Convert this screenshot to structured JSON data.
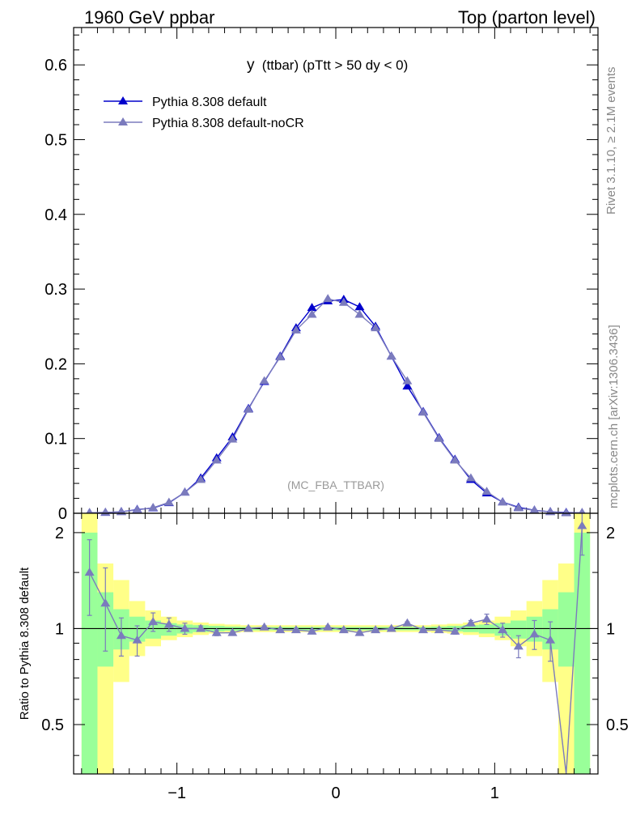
{
  "header": {
    "left": "1960 GeV ppbar",
    "right": "Top (parton level)"
  },
  "side_labels": {
    "rivet": "Rivet 3.1.10, ≥ 2.1M events",
    "mcplots": "mcplots.cern.ch [arXiv:1306.3436]"
  },
  "chart_data": [
    {
      "type": "line",
      "panel": "main",
      "title": "y (ttbar) (pTtt > 50 dy < 0)",
      "title_main": "y",
      "title_rest": "(ttbar) (pTtt > 50 dy < 0)",
      "watermark": "(MC_FBA_TTBAR)",
      "xlim": [
        -1.65,
        1.65
      ],
      "ylim": [
        0,
        0.65
      ],
      "x_ticks": [
        -1,
        0,
        1
      ],
      "y_ticks": [
        0,
        0.1,
        0.2,
        0.3,
        0.4,
        0.5,
        0.6
      ],
      "y_tick_labels": [
        "0",
        "0.1",
        "0.2",
        "0.3",
        "0.4",
        "0.5",
        "0.6"
      ],
      "legend_position": "top-left",
      "x": [
        -1.55,
        -1.45,
        -1.35,
        -1.25,
        -1.15,
        -1.05,
        -0.95,
        -0.85,
        -0.75,
        -0.65,
        -0.55,
        -0.45,
        -0.35,
        -0.25,
        -0.15,
        -0.05,
        0.05,
        0.15,
        0.25,
        0.35,
        0.45,
        0.55,
        0.65,
        0.75,
        0.85,
        0.95,
        1.05,
        1.15,
        1.25,
        1.35,
        1.45,
        1.55
      ],
      "series": [
        {
          "name": "Pythia 8.308 default",
          "color": "#0000cc",
          "values": [
            0.0005,
            0.001,
            0.002,
            0.005,
            0.007,
            0.014,
            0.028,
            0.047,
            0.074,
            0.102,
            0.14,
            0.176,
            0.21,
            0.248,
            0.275,
            0.284,
            0.286,
            0.276,
            0.25,
            0.21,
            0.17,
            0.136,
            0.101,
            0.072,
            0.045,
            0.027,
            0.015,
            0.008,
            0.004,
            0.002,
            0.001,
            0.0004
          ]
        },
        {
          "name": "Pythia 8.308 default-noCR",
          "color": "#7b7bbd",
          "values": [
            0.0008,
            0.0012,
            0.0019,
            0.0046,
            0.0074,
            0.0145,
            0.028,
            0.045,
            0.071,
            0.099,
            0.139,
            0.177,
            0.209,
            0.245,
            0.266,
            0.287,
            0.282,
            0.266,
            0.248,
            0.21,
            0.177,
            0.135,
            0.1,
            0.071,
            0.047,
            0.029,
            0.0148,
            0.0071,
            0.0039,
            0.0019,
            0.0004,
            0.0009
          ]
        }
      ]
    },
    {
      "type": "line",
      "panel": "ratio",
      "ylabel": "Ratio to Pythia 8.308 default",
      "ylim": [
        0.35,
        2.3
      ],
      "y_ticks": [
        0.5,
        1,
        2
      ],
      "y_tick_labels": [
        "0.5",
        "1",
        "2"
      ],
      "x_ticks": [
        -1,
        0,
        1
      ],
      "x_tick_labels": [
        "−1",
        "0",
        "1"
      ],
      "log_scale_y": true,
      "band_colors": {
        "inner": "#99ff99",
        "outer": "#ffff88"
      },
      "bands": [
        {
          "x": [
            -1.6,
            -1.5
          ],
          "inner": [
            0.3,
            2.0
          ],
          "outer": [
            0.3,
            2.4
          ]
        },
        {
          "x": [
            -1.5,
            -1.4
          ],
          "inner": [
            0.76,
            1.3
          ],
          "outer": [
            0.3,
            1.6
          ]
        },
        {
          "x": [
            -1.4,
            -1.3
          ],
          "inner": [
            0.86,
            1.15
          ],
          "outer": [
            0.68,
            1.42
          ]
        },
        {
          "x": [
            -1.3,
            -1.2
          ],
          "inner": [
            0.91,
            1.09
          ],
          "outer": [
            0.82,
            1.22
          ]
        },
        {
          "x": [
            -1.2,
            -1.1
          ],
          "inner": [
            0.93,
            1.06
          ],
          "outer": [
            0.88,
            1.14
          ]
        },
        {
          "x": [
            -1.1,
            -1.0
          ],
          "inner": [
            0.95,
            1.04
          ],
          "outer": [
            0.92,
            1.09
          ]
        },
        {
          "x": [
            -1.0,
            -0.9
          ],
          "inner": [
            0.965,
            1.03
          ],
          "outer": [
            0.94,
            1.06
          ]
        },
        {
          "x": [
            -0.9,
            -0.8
          ],
          "inner": [
            0.975,
            1.025
          ],
          "outer": [
            0.955,
            1.045
          ]
        },
        {
          "x": [
            -0.8,
            -0.7
          ],
          "inner": [
            0.98,
            1.02
          ],
          "outer": [
            0.965,
            1.035
          ]
        },
        {
          "x": [
            -0.7,
            -0.6
          ],
          "inner": [
            0.985,
            1.015
          ],
          "outer": [
            0.97,
            1.03
          ]
        },
        {
          "x": [
            -0.6,
            0.6
          ],
          "inner": [
            0.988,
            1.012
          ],
          "outer": [
            0.975,
            1.025
          ]
        },
        {
          "x": [
            0.6,
            0.7
          ],
          "inner": [
            0.985,
            1.015
          ],
          "outer": [
            0.97,
            1.03
          ]
        },
        {
          "x": [
            0.7,
            0.8
          ],
          "inner": [
            0.98,
            1.02
          ],
          "outer": [
            0.965,
            1.035
          ]
        },
        {
          "x": [
            0.8,
            0.9
          ],
          "inner": [
            0.975,
            1.025
          ],
          "outer": [
            0.955,
            1.045
          ]
        },
        {
          "x": [
            0.9,
            1.0
          ],
          "inner": [
            0.965,
            1.03
          ],
          "outer": [
            0.94,
            1.06
          ]
        },
        {
          "x": [
            1.0,
            1.1
          ],
          "inner": [
            0.95,
            1.04
          ],
          "outer": [
            0.92,
            1.09
          ]
        },
        {
          "x": [
            1.1,
            1.2
          ],
          "inner": [
            0.93,
            1.06
          ],
          "outer": [
            0.88,
            1.14
          ]
        },
        {
          "x": [
            1.2,
            1.3
          ],
          "inner": [
            0.91,
            1.09
          ],
          "outer": [
            0.82,
            1.22
          ]
        },
        {
          "x": [
            1.3,
            1.4
          ],
          "inner": [
            0.86,
            1.15
          ],
          "outer": [
            0.68,
            1.42
          ]
        },
        {
          "x": [
            1.4,
            1.5
          ],
          "inner": [
            0.76,
            1.3
          ],
          "outer": [
            0.3,
            1.6
          ]
        },
        {
          "x": [
            1.5,
            1.6
          ],
          "inner": [
            0.3,
            2.0
          ],
          "outer": [
            0.3,
            2.4
          ]
        }
      ],
      "x": [
        -1.55,
        -1.45,
        -1.35,
        -1.25,
        -1.15,
        -1.05,
        -0.95,
        -0.85,
        -0.75,
        -0.65,
        -0.55,
        -0.45,
        -0.35,
        -0.25,
        -0.15,
        -0.05,
        0.05,
        0.15,
        0.25,
        0.35,
        0.45,
        0.55,
        0.65,
        0.75,
        0.85,
        0.95,
        1.05,
        1.15,
        1.25,
        1.35,
        1.45,
        1.55
      ],
      "series": [
        {
          "name": "Pythia 8.308 default-noCR",
          "color": "#7b7bbd",
          "values": [
            1.5,
            1.2,
            0.95,
            0.92,
            1.05,
            1.03,
            1.0,
            1.0,
            0.97,
            0.97,
            1.0,
            1.01,
            0.99,
            0.99,
            0.98,
            1.01,
            0.99,
            0.97,
            0.99,
            1.0,
            1.04,
            0.99,
            0.99,
            0.98,
            1.04,
            1.07,
            0.99,
            0.88,
            0.96,
            0.92,
            0.3,
            2.1
          ],
          "err_low": [
            0.4,
            0.35,
            0.13,
            0.1,
            0.07,
            0.05,
            0.04,
            0.02,
            0.02,
            0.01,
            0.01,
            0.01,
            0.01,
            0.01,
            0.01,
            0.01,
            0.01,
            0.01,
            0.01,
            0.01,
            0.01,
            0.01,
            0.01,
            0.02,
            0.02,
            0.04,
            0.05,
            0.07,
            0.1,
            0.13,
            0.0,
            0.4
          ],
          "err_high": [
            0.4,
            0.35,
            0.13,
            0.1,
            0.07,
            0.05,
            0.04,
            0.02,
            0.02,
            0.01,
            0.01,
            0.01,
            0.01,
            0.01,
            0.01,
            0.01,
            0.01,
            0.01,
            0.01,
            0.01,
            0.01,
            0.01,
            0.01,
            0.02,
            0.02,
            0.04,
            0.05,
            0.07,
            0.1,
            0.13,
            0.0,
            0.4
          ]
        }
      ]
    }
  ]
}
